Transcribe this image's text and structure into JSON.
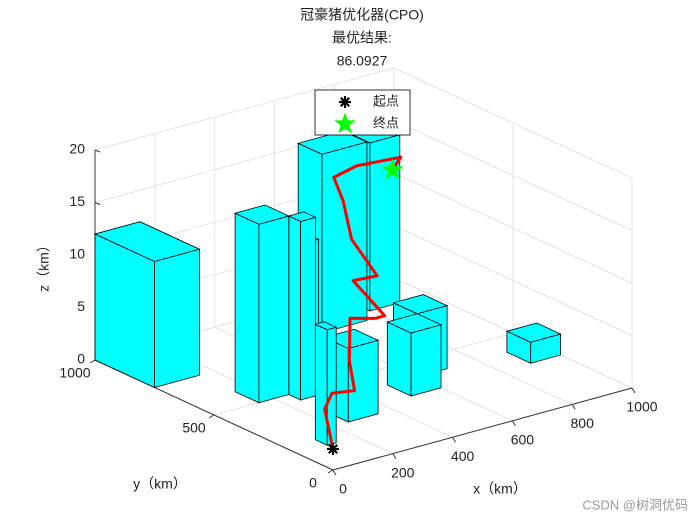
{
  "chart_data": {
    "type": "3d-path",
    "title": "冠豪猪优化器(CPO)",
    "subtitle": "最优结果:",
    "best_value": 86.0927,
    "x_label": "x（km）",
    "y_label": "y（km）",
    "z_label": "z（km）",
    "xlim": [
      0,
      1000
    ],
    "xticks": [
      0,
      200,
      400,
      600,
      800,
      1000
    ],
    "ylim": [
      0,
      1000
    ],
    "yticks": [
      0,
      500,
      1000
    ],
    "zlim": [
      0,
      20
    ],
    "zticks": [
      0,
      5,
      10,
      15,
      20
    ],
    "grid": true,
    "legend_position": "top",
    "obstacle_color": "#00ffff",
    "obstacles": [
      {
        "x": [
          0,
          150
        ],
        "y": [
          750,
          1000
        ],
        "h": 12
      },
      {
        "x": [
          800,
          900
        ],
        "y": [
          850,
          950
        ],
        "h": 16
      },
      {
        "x": [
          600,
          750
        ],
        "y": [
          800,
          900
        ],
        "h": 17
      },
      {
        "x": [
          300,
          350
        ],
        "y": [
          500,
          700
        ],
        "h": 14
      },
      {
        "x": [
          150,
          250
        ],
        "y": [
          500,
          600
        ],
        "h": 17
      },
      {
        "x": [
          250,
          300
        ],
        "y": [
          450,
          500
        ],
        "h": 17
      },
      {
        "x": [
          900,
          1000
        ],
        "y": [
          300,
          400
        ],
        "h": 2
      },
      {
        "x": [
          600,
          700
        ],
        "y": [
          400,
          500
        ],
        "h": 6
      },
      {
        "x": [
          500,
          600
        ],
        "y": [
          300,
          400
        ],
        "h": 6
      },
      {
        "x": [
          250,
          350
        ],
        "y": [
          250,
          350
        ],
        "h": 7
      },
      {
        "x": [
          100,
          130
        ],
        "y": [
          150,
          200
        ],
        "h": 11
      }
    ],
    "path": {
      "color": "#ff0000",
      "x": [
        0,
        20,
        60,
        120,
        150,
        200,
        300,
        380,
        330,
        450,
        420,
        480,
        520,
        620,
        800,
        820
      ],
      "y": [
        0,
        60,
        80,
        60,
        120,
        180,
        200,
        260,
        330,
        380,
        450,
        560,
        650,
        680,
        720,
        780
      ],
      "z": [
        2,
        5,
        6,
        6,
        8,
        11,
        10,
        9,
        12,
        11,
        14,
        16,
        17,
        17,
        16,
        14
      ]
    },
    "series": [
      {
        "name": "起点",
        "color": "#000000",
        "x": [
          0
        ],
        "y": [
          0
        ],
        "z": [
          2
        ]
      },
      {
        "name": "终点",
        "color": "#00ff00",
        "x": [
          820
        ],
        "y": [
          780
        ],
        "z": [
          14
        ]
      }
    ],
    "watermark": "CSDN @树洞优码"
  }
}
